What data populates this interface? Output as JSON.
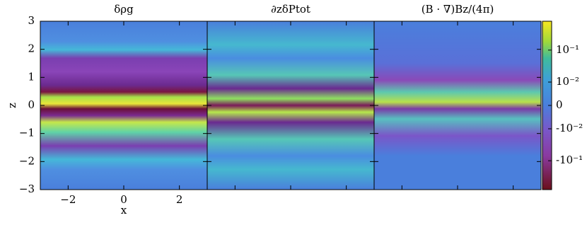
{
  "chart_data": {
    "type": "heatmap",
    "panels": [
      {
        "title": "δρg"
      },
      {
        "title": "∂zδPtot"
      },
      {
        "title": "(B · ∇)Bz/(4π)"
      }
    ],
    "xlabel": "x",
    "ylabel": "z",
    "xlim": [
      -3,
      3
    ],
    "xticks": [
      {
        "value": -2,
        "label": "−2"
      },
      0,
      2
    ],
    "ylim": [
      -3,
      3
    ],
    "yticks": [
      {
        "value": -3,
        "label": "−3"
      },
      {
        "value": -2,
        "label": "−2"
      },
      {
        "value": -1,
        "label": "−1"
      },
      0,
      1,
      2,
      3
    ],
    "colorbar": {
      "scale": "symlog",
      "linthresh": 0.01,
      "lim": [
        -0.8,
        0.8
      ],
      "ticks": [
        {
          "value": 0.1,
          "label": "10⁻¹"
        },
        {
          "value": 0.01,
          "label": "10⁻²"
        },
        0,
        {
          "value": -0.01,
          "label": "-10⁻²"
        },
        {
          "value": -0.1,
          "label": "-10⁻¹"
        }
      ]
    }
  }
}
